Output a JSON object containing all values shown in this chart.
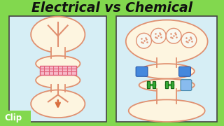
{
  "bg_color": "#82d84e",
  "panel_bg": "#d6eef5",
  "cell_fill": "#fdf5e0",
  "cell_stroke": "#e09070",
  "title": "Electrical vs Chemical",
  "title_color": "#111111",
  "title_fontsize": 13.5,
  "gj_fill": "#f7b8c8",
  "gj_stripe": "#e0607a",
  "arrow_color": "#d97040",
  "vesicle_fill": "#f8f8f0",
  "vesicle_stroke": "#e09070",
  "blue_channel": "#4488dd",
  "blue_channel_edge": "#2255aa",
  "green_receptor": "#33aa33",
  "green_receptor_edge": "#115511",
  "light_blue": "#88bbee",
  "light_blue_edge": "#4488aa",
  "clip_text": "Clip",
  "clip_color": "#ffffff",
  "clip_fontsize": 8.5,
  "clip_bg": "#82d84e"
}
